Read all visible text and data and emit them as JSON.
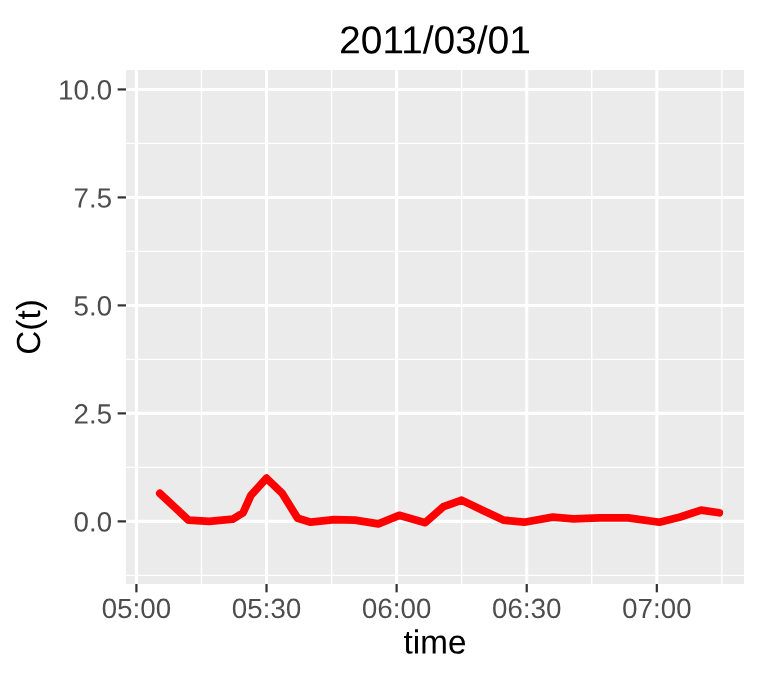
{
  "chart_data": {
    "type": "line",
    "title": "2011/03/01",
    "xlabel": "time",
    "ylabel": "C(t)",
    "xlim": [
      4.96,
      7.335
    ],
    "ylim": [
      -1.45,
      10.45
    ],
    "xticks": [
      {
        "value": 5,
        "label": "05:00"
      },
      {
        "value": 5.5,
        "label": "05:30"
      },
      {
        "value": 6,
        "label": "06:00"
      },
      {
        "value": 6.5,
        "label": "06:30"
      },
      {
        "value": 7,
        "label": "07:00"
      }
    ],
    "yticks": [
      {
        "value": 0,
        "label": "0.0"
      },
      {
        "value": 2.5,
        "label": "2.5"
      },
      {
        "value": 5,
        "label": "5.0"
      },
      {
        "value": 7.5,
        "label": "7.5"
      },
      {
        "value": 10,
        "label": "10.0"
      }
    ],
    "grid": true,
    "legend": false,
    "marker": "none",
    "line_style": "solid",
    "series": [
      {
        "color": "#ff0000",
        "x": [
          5.09,
          5.2,
          5.28,
          5.37,
          5.41,
          5.44,
          5.5,
          5.56,
          5.62,
          5.67,
          5.76,
          5.84,
          5.93,
          6.01,
          6.11,
          6.18,
          6.25,
          6.33,
          6.41,
          6.49,
          6.6,
          6.68,
          6.78,
          6.89,
          7.01,
          7.09,
          7.17,
          7.24
        ],
        "values": [
          0.65,
          0.03,
          0.0,
          0.05,
          0.2,
          0.6,
          1.0,
          0.65,
          0.07,
          -0.02,
          0.04,
          0.03,
          -0.06,
          0.14,
          -0.03,
          0.34,
          0.49,
          0.26,
          0.03,
          -0.02,
          0.1,
          0.06,
          0.08,
          0.08,
          -0.02,
          0.1,
          0.26,
          0.2
        ]
      }
    ]
  }
}
